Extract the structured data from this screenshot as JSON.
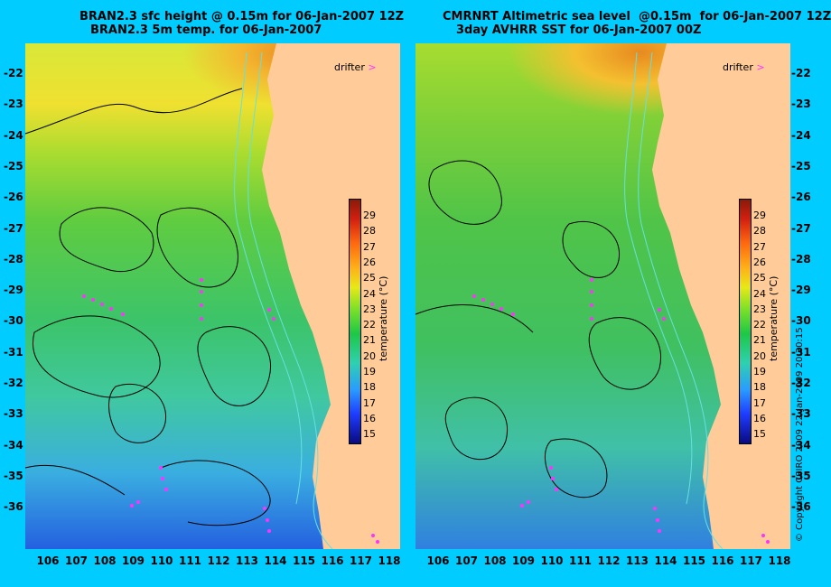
{
  "left_panel": {
    "title_line1": "BRAN2.3 sfc height @ 0.15m for 06-Jan-2007 12Z",
    "title_line2": "BRAN2.3 5m temp. for 06-Jan-2007"
  },
  "right_panel": {
    "title_line1": "CMRNRT Altimetric sea level  @0.15m  for 06-Jan-2007 12Z",
    "title_line2": "3day AVHRR SST for 06-Jan-2007 00Z"
  },
  "latitude_labels": [
    "-22",
    "-23",
    "-24",
    "-25",
    "-26",
    "-27",
    "-28",
    "-29",
    "-30",
    "-31",
    "-32",
    "-33",
    "-34",
    "-35",
    "-36"
  ],
  "longitude_labels": [
    "106",
    "107",
    "108",
    "109",
    "110",
    "111",
    "112",
    "113",
    "114",
    "115",
    "116",
    "117",
    "118"
  ],
  "colorbar": {
    "ticks": [
      "29",
      "28",
      "27",
      "26",
      "25",
      "24",
      "23",
      "22",
      "21",
      "20",
      "19",
      "18",
      "17",
      "16",
      "15"
    ],
    "unit_label": "temperature (°C)"
  },
  "legend": {
    "drifter_label": "drifter"
  },
  "copyright": "© Copyright CSIRO 2009  22-Jan-2009 20:30:15",
  "colors": {
    "background": "#00ccff",
    "land": "#ffcc99",
    "drifter": "#ff33ff",
    "contour": "#000000",
    "isobath": "#66e0e0"
  }
}
